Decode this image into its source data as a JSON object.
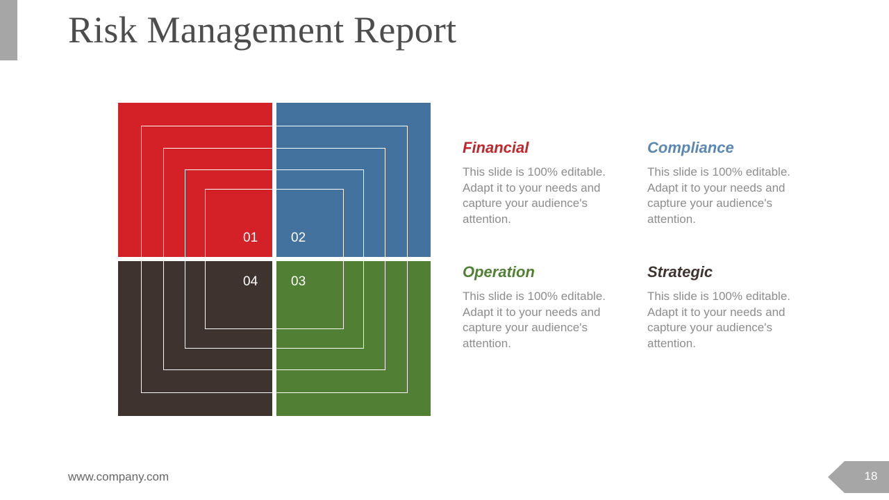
{
  "title": "Risk Management Report",
  "colors": {
    "financial": "#d42027",
    "compliance": "#44729f",
    "operation": "#518034",
    "strategic": "#3f3330",
    "title": "#4d4d4d",
    "body_text": "#8c8c8c",
    "accent_gray": "#a6a6a6"
  },
  "diagram": {
    "numbers": [
      "01",
      "02",
      "03",
      "04"
    ]
  },
  "sections": [
    {
      "heading": "Financial",
      "body": "This slide is 100% editable. Adapt it to your needs and capture your audience's attention."
    },
    {
      "heading": "Compliance",
      "body": "This slide is 100% editable. Adapt it to your needs and capture your audience's attention."
    },
    {
      "heading": "Operation",
      "body": "This slide is 100% editable. Adapt it to your needs and capture your audience's attention."
    },
    {
      "heading": "Strategic",
      "body": "This slide is 100% editable. Adapt it to your needs and capture your audience's attention."
    }
  ],
  "footer": {
    "url": "www.company.com",
    "page_number": "18"
  }
}
